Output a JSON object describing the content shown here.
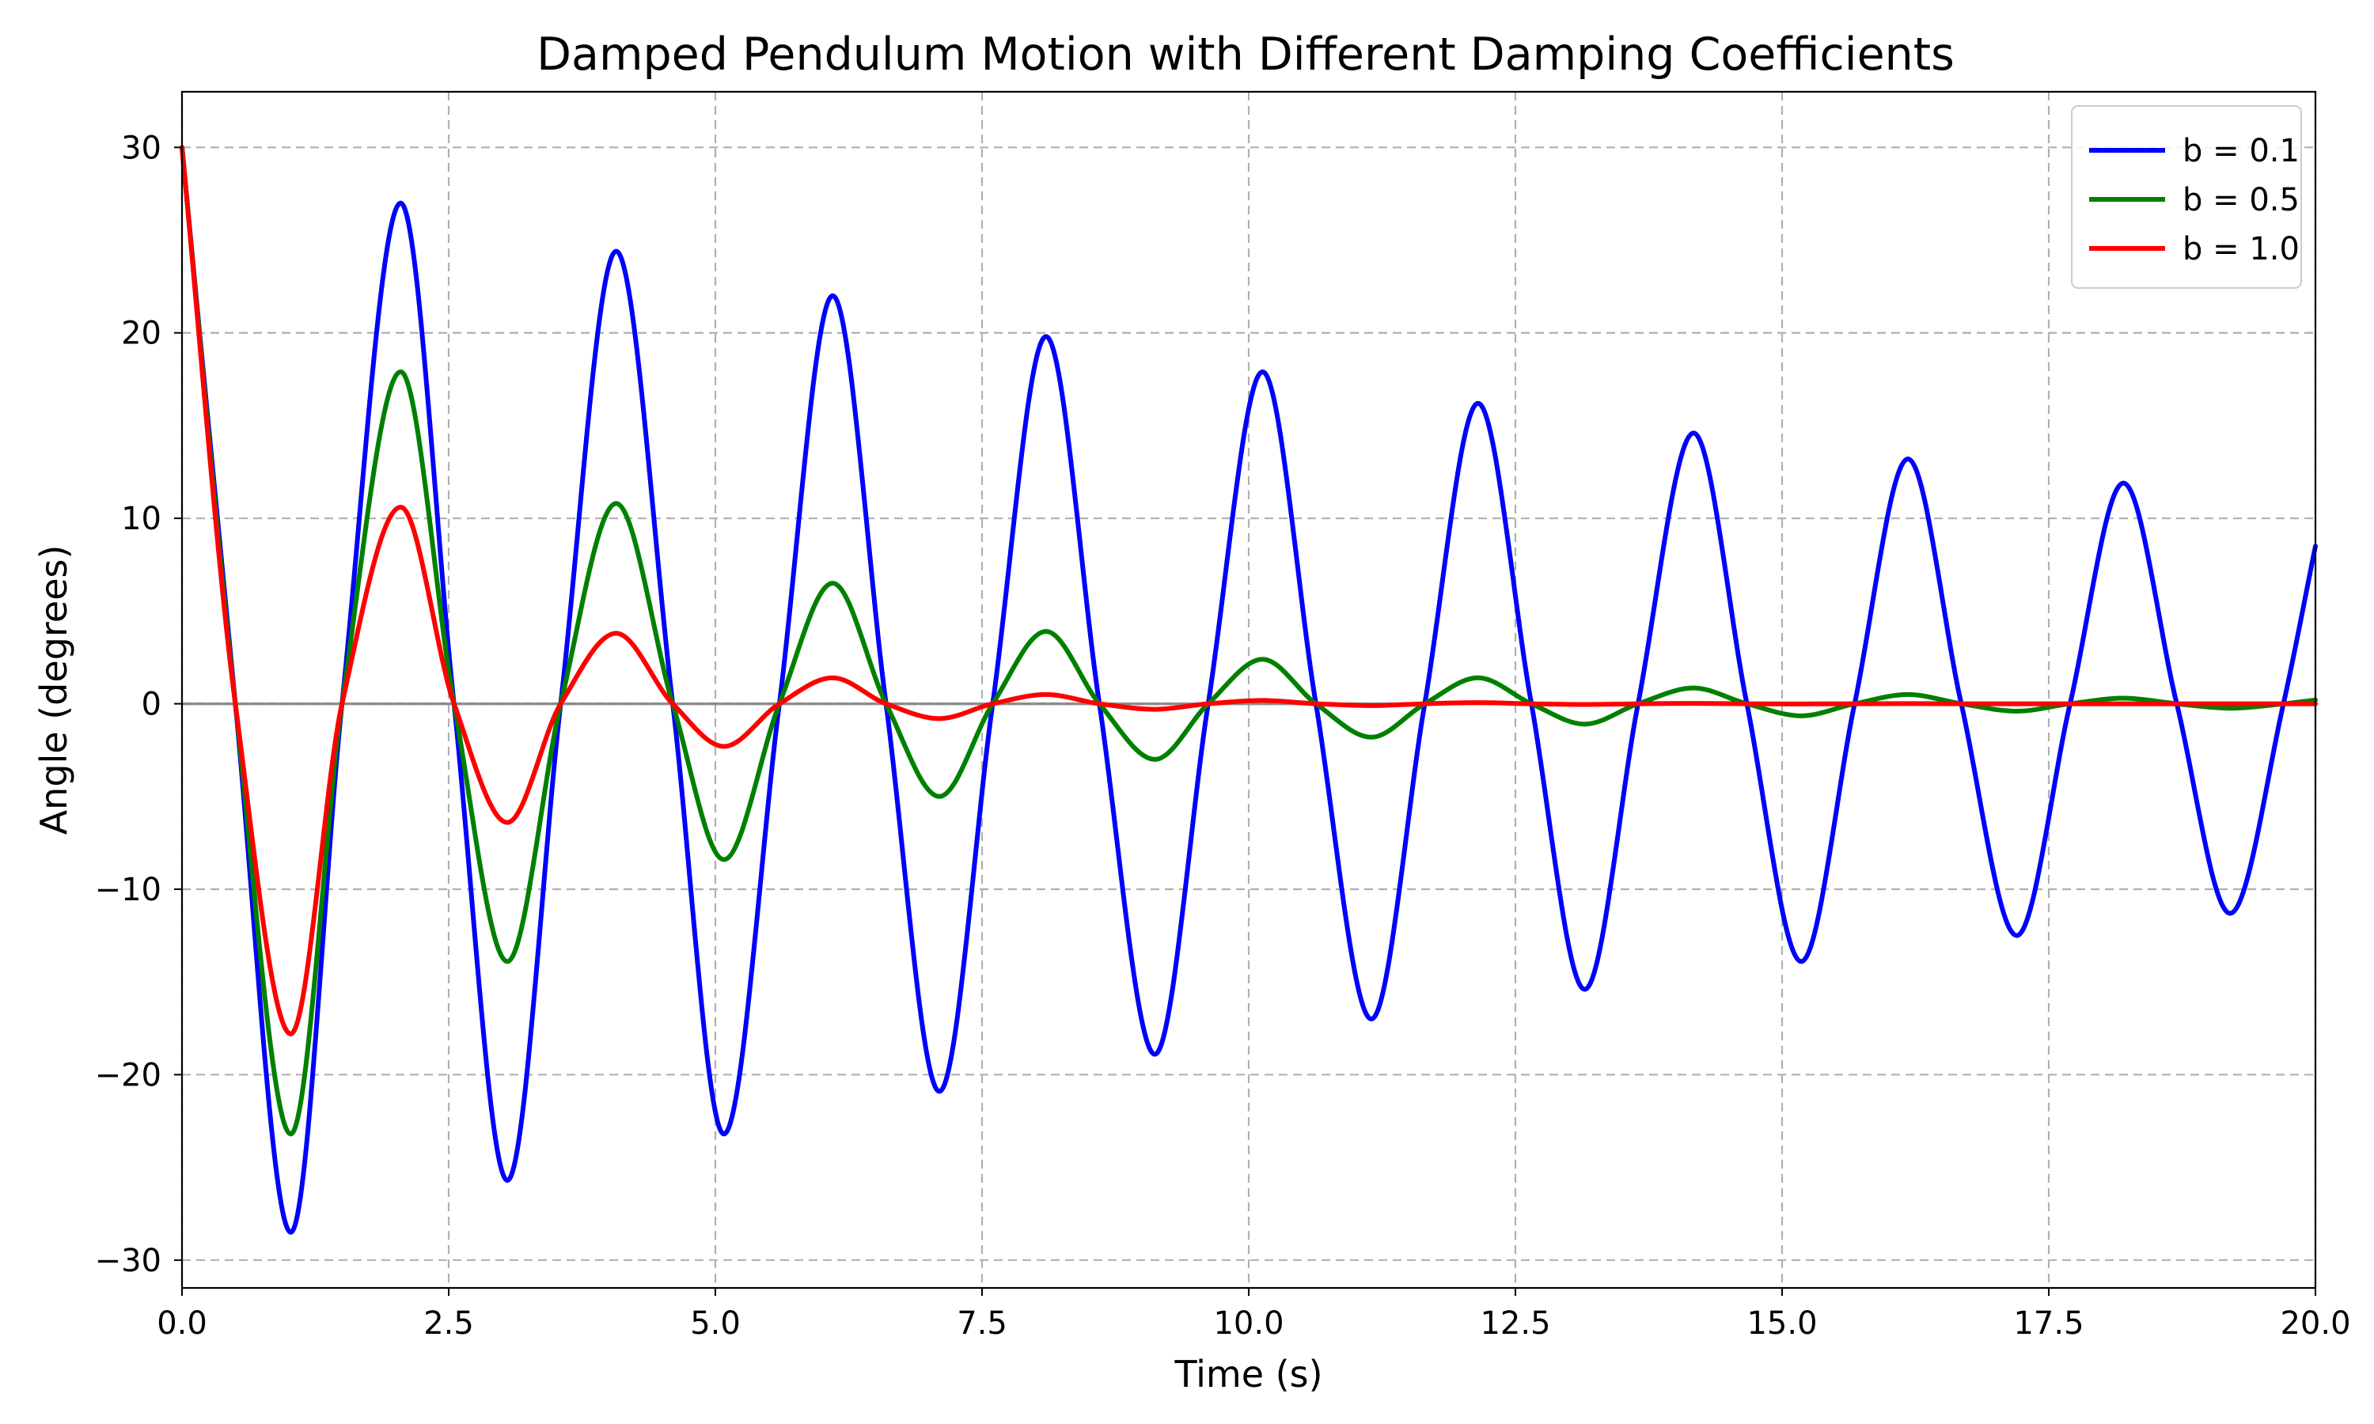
{
  "chart_data": {
    "type": "line",
    "title": "Damped Pendulum Motion with Different Damping Coefficients",
    "xlabel": "Time (s)",
    "ylabel": "Angle (degrees)",
    "xlim": [
      0,
      20
    ],
    "ylim": [
      -31.5,
      33
    ],
    "xticks": [
      0,
      2.5,
      5,
      7.5,
      10,
      12.5,
      15,
      17.5,
      20
    ],
    "xtick_labels": [
      "0.0",
      "2.5",
      "5.0",
      "7.5",
      "10.0",
      "12.5",
      "15.0",
      "17.5",
      "20.0"
    ],
    "yticks": [
      30,
      20,
      10,
      0,
      -10,
      -20,
      -30
    ],
    "ytick_labels": [
      "30",
      "20",
      "10",
      "0",
      "−10",
      "−20",
      "−30"
    ],
    "grid": true,
    "grid_style": "dashed",
    "reference_line": {
      "y": 0,
      "color": "#808080"
    },
    "legend_position": "top-right",
    "series": [
      {
        "name": "b = 0.1",
        "color": "#0000ff",
        "x": [
          0,
          0.5,
          1.02,
          1.5,
          2.05,
          2.55,
          3.05,
          3.55,
          4.07,
          4.6,
          5.08,
          5.6,
          6.1,
          6.6,
          7.1,
          7.6,
          8.1,
          8.6,
          9.12,
          9.62,
          10.13,
          10.63,
          11.15,
          11.65,
          12.15,
          12.65,
          13.15,
          13.65,
          14.17,
          14.67,
          15.18,
          15.68,
          16.18,
          16.68,
          17.2,
          17.7,
          18.2,
          18.7,
          19.2,
          19.7,
          20
        ],
        "y": [
          30,
          0,
          -28.5,
          0,
          27,
          0,
          -25.7,
          0,
          24.4,
          0,
          -23.2,
          0,
          22,
          0,
          -20.9,
          0,
          19.8,
          0,
          -18.9,
          0,
          17.9,
          0,
          -17,
          0,
          16.2,
          0,
          -15.4,
          0,
          14.6,
          0,
          -13.9,
          0,
          13.2,
          0,
          -12.5,
          0,
          11.9,
          0,
          -11.3,
          0,
          8.5
        ]
      },
      {
        "name": "b = 0.5",
        "color": "#008000",
        "x": [
          0,
          0.5,
          1.02,
          1.5,
          2.05,
          2.55,
          3.05,
          3.55,
          4.07,
          4.6,
          5.08,
          5.6,
          6.1,
          6.6,
          7.1,
          7.6,
          8.1,
          8.6,
          9.12,
          9.62,
          10.13,
          10.63,
          11.15,
          11.65,
          12.15,
          12.65,
          13.15,
          13.65,
          14.17,
          14.67,
          15.18,
          15.68,
          16.18,
          16.68,
          17.2,
          17.7,
          18.2,
          18.7,
          19.2,
          19.7,
          20
        ],
        "y": [
          30,
          0,
          -23.2,
          0,
          17.9,
          0,
          -13.9,
          0,
          10.8,
          0,
          -8.4,
          0,
          6.5,
          0,
          -5,
          0,
          3.9,
          0,
          -3,
          0,
          2.4,
          0,
          -1.8,
          0,
          1.4,
          0,
          -1.1,
          0,
          0.85,
          0,
          -0.65,
          0,
          0.5,
          0,
          -0.4,
          0,
          0.3,
          0,
          -0.24,
          0,
          0.2
        ]
      },
      {
        "name": "b = 1.0",
        "color": "#ff0000",
        "x": [
          0,
          0.5,
          1.02,
          1.5,
          2.05,
          2.55,
          3.05,
          3.55,
          4.07,
          4.6,
          5.08,
          5.6,
          6.1,
          6.6,
          7.1,
          7.6,
          8.1,
          8.6,
          9.12,
          9.62,
          10.13,
          10.63,
          11.15,
          11.65,
          12.15,
          12.65,
          13.15,
          13.65,
          14.17,
          14.67,
          15.18,
          15.68,
          16.18,
          16.68,
          17.2,
          17.7,
          18.2,
          18.7,
          19.2,
          19.7,
          20
        ],
        "y": [
          30,
          0,
          -17.8,
          0,
          10.6,
          0,
          -6.4,
          0,
          3.8,
          0,
          -2.3,
          0,
          1.4,
          0,
          -0.8,
          0,
          0.5,
          0,
          -0.3,
          0,
          0.18,
          0,
          -0.1,
          0,
          0.06,
          0,
          -0.04,
          0,
          0.02,
          0,
          -0.01,
          0,
          0.01,
          0,
          0,
          0,
          0,
          0,
          0,
          0,
          0
        ]
      }
    ]
  }
}
